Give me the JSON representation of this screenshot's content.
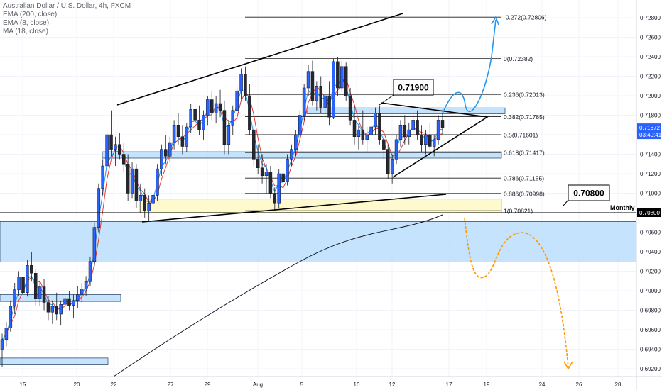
{
  "legend": {
    "title": "Australian Dollar / U.S. Dollar, 4h, FXCM",
    "ema200": "EMA (200, close)",
    "ema8": "EMA (8, close)",
    "ma18": "MA (18, close)"
  },
  "colors": {
    "up": "#2962ff",
    "down": "#26282e",
    "zone_blue": "#bbdefb",
    "zone_yellow": "#fff9c4",
    "ema200": "#131722",
    "ema8": "#2196f3",
    "ma18": "#e53935",
    "arrow_blue": "#2196f3",
    "arrow_orange": "#ff9800"
  },
  "chart_data": {
    "type": "candlestick",
    "x_tick_labels": [
      "15",
      "20",
      "22",
      "27",
      "29",
      "Aug",
      "5",
      "10",
      "12",
      "17",
      "19",
      "24",
      "26",
      "28"
    ],
    "y_tick_labels": [
      "0.72800",
      "0.72600",
      "0.72400",
      "0.72200",
      "0.72000",
      "0.71800",
      "0.71600",
      "0.71400",
      "0.71200",
      "0.71000",
      "0.70800",
      "0.70600",
      "0.70400",
      "0.70200",
      "0.70000",
      "0.69800",
      "0.69600",
      "0.69400",
      "0.69200"
    ],
    "ylim": [
      0.6907,
      0.7295
    ],
    "last_price": "0.71672",
    "countdown": "03:40:41",
    "monthly_price": "0.70800",
    "monthly_label": "Monthly",
    "callout_upper": "0.71900",
    "callout_lower": "0.70800",
    "fib_levels": [
      {
        "label": "-0.272(0.72806)",
        "value": 0.72806
      },
      {
        "label": "0(0.72382)",
        "value": 0.72382
      },
      {
        "label": "0.236(0.72013)",
        "value": 0.72013
      },
      {
        "label": "0.382(0.71785)",
        "value": 0.71785
      },
      {
        "label": "0.5(0.71601)",
        "value": 0.71601
      },
      {
        "label": "0.618(0.71417)",
        "value": 0.71417
      },
      {
        "label": "0.786(0.71155)",
        "value": 0.71155
      },
      {
        "label": "0.886(0.70998)",
        "value": 0.70998
      },
      {
        "label": "1(0.70821)",
        "value": 0.70821
      }
    ],
    "zones": [
      {
        "color": "blue",
        "y_top": 0.7071,
        "y_bottom": 0.70295
      },
      {
        "color": "blue",
        "y_top": 0.71875,
        "y_bottom": 0.71815
      },
      {
        "color": "blue",
        "y_top": 0.71425,
        "y_bottom": 0.7136
      },
      {
        "color": "blue",
        "y_top": 0.6996,
        "y_bottom": 0.6989
      },
      {
        "color": "blue",
        "y_top": 0.6931,
        "y_bottom": 0.6924
      },
      {
        "color": "yellow",
        "y_top": 0.7094,
        "y_bottom": 0.708
      }
    ],
    "candles": [
      [
        0.694,
        0.6956,
        0.6922,
        0.695
      ],
      [
        0.695,
        0.6968,
        0.6943,
        0.6962
      ],
      [
        0.6962,
        0.699,
        0.6958,
        0.6984
      ],
      [
        0.6984,
        0.7008,
        0.6976,
        0.7001
      ],
      [
        0.7001,
        0.702,
        0.6995,
        0.7014
      ],
      [
        0.7014,
        0.7025,
        0.699,
        0.6998
      ],
      [
        0.6998,
        0.7032,
        0.6994,
        0.7026
      ],
      [
        0.7026,
        0.704,
        0.701,
        0.7018
      ],
      [
        0.7018,
        0.7022,
        0.6985,
        0.6992
      ],
      [
        0.6992,
        0.701,
        0.6984,
        0.7004
      ],
      [
        0.7004,
        0.7012,
        0.698,
        0.6988
      ],
      [
        0.6988,
        0.6995,
        0.697,
        0.6978
      ],
      [
        0.6978,
        0.699,
        0.6966,
        0.6984
      ],
      [
        0.6984,
        0.6998,
        0.697,
        0.6976
      ],
      [
        0.6976,
        0.699,
        0.6965,
        0.6986
      ],
      [
        0.6986,
        0.6998,
        0.6975,
        0.6992
      ],
      [
        0.6992,
        0.7,
        0.698,
        0.6985
      ],
      [
        0.6985,
        0.6996,
        0.6972,
        0.699
      ],
      [
        0.699,
        0.7005,
        0.6982,
        0.6996
      ],
      [
        0.6996,
        0.7008,
        0.6988,
        0.7002
      ],
      [
        0.7002,
        0.7015,
        0.6995,
        0.701
      ],
      [
        0.701,
        0.7035,
        0.7005,
        0.703
      ],
      [
        0.703,
        0.707,
        0.7025,
        0.7065
      ],
      [
        0.7065,
        0.711,
        0.706,
        0.7105
      ],
      [
        0.7105,
        0.7135,
        0.7098,
        0.7128
      ],
      [
        0.7128,
        0.7165,
        0.7122,
        0.716
      ],
      [
        0.716,
        0.7185,
        0.7138,
        0.7145
      ],
      [
        0.7145,
        0.7158,
        0.7128,
        0.715
      ],
      [
        0.715,
        0.7162,
        0.7135,
        0.714
      ],
      [
        0.714,
        0.7152,
        0.7122,
        0.713
      ],
      [
        0.713,
        0.714,
        0.7092,
        0.71
      ],
      [
        0.71,
        0.7132,
        0.7095,
        0.7125
      ],
      [
        0.7125,
        0.713,
        0.7085,
        0.7092
      ],
      [
        0.7092,
        0.711,
        0.708,
        0.7098
      ],
      [
        0.7098,
        0.7105,
        0.7075,
        0.7082
      ],
      [
        0.7082,
        0.7098,
        0.7072,
        0.709
      ],
      [
        0.709,
        0.7105,
        0.708,
        0.7098
      ],
      [
        0.7098,
        0.713,
        0.7092,
        0.7125
      ],
      [
        0.7125,
        0.715,
        0.7118,
        0.7145
      ],
      [
        0.7145,
        0.716,
        0.713,
        0.7138
      ],
      [
        0.7138,
        0.7158,
        0.7132,
        0.7152
      ],
      [
        0.7152,
        0.7175,
        0.7145,
        0.717
      ],
      [
        0.717,
        0.7182,
        0.715,
        0.7158
      ],
      [
        0.7158,
        0.717,
        0.714,
        0.7148
      ],
      [
        0.7148,
        0.7172,
        0.7142,
        0.7168
      ],
      [
        0.7168,
        0.7192,
        0.7162,
        0.7186
      ],
      [
        0.7186,
        0.7195,
        0.7168,
        0.7175
      ],
      [
        0.7175,
        0.719,
        0.716,
        0.7165
      ],
      [
        0.7165,
        0.7185,
        0.7155,
        0.718
      ],
      [
        0.718,
        0.72,
        0.717,
        0.7196
      ],
      [
        0.7196,
        0.7205,
        0.7175,
        0.7182
      ],
      [
        0.7182,
        0.72,
        0.7172,
        0.7192
      ],
      [
        0.7192,
        0.7206,
        0.7178,
        0.7185
      ],
      [
        0.7185,
        0.7195,
        0.714,
        0.715
      ],
      [
        0.715,
        0.7175,
        0.714,
        0.717
      ],
      [
        0.717,
        0.719,
        0.716,
        0.7185
      ],
      [
        0.7185,
        0.721,
        0.718,
        0.7205
      ],
      [
        0.7205,
        0.7228,
        0.7196,
        0.7222
      ],
      [
        0.7222,
        0.723,
        0.7195,
        0.72
      ],
      [
        0.72,
        0.7212,
        0.716,
        0.7165
      ],
      [
        0.7165,
        0.717,
        0.7128,
        0.7135
      ],
      [
        0.7135,
        0.715,
        0.712,
        0.7126
      ],
      [
        0.7126,
        0.714,
        0.711,
        0.7118
      ],
      [
        0.7118,
        0.713,
        0.71,
        0.7122
      ],
      [
        0.7122,
        0.7128,
        0.7095,
        0.71
      ],
      [
        0.71,
        0.7106,
        0.7082,
        0.709
      ],
      [
        0.709,
        0.7125,
        0.7085,
        0.712
      ],
      [
        0.712,
        0.713,
        0.7105,
        0.7112
      ],
      [
        0.7112,
        0.714,
        0.7108,
        0.7135
      ],
      [
        0.7135,
        0.715,
        0.7128,
        0.7145
      ],
      [
        0.7145,
        0.7165,
        0.7138,
        0.716
      ],
      [
        0.716,
        0.7185,
        0.7155,
        0.718
      ],
      [
        0.718,
        0.7212,
        0.7175,
        0.7208
      ],
      [
        0.7208,
        0.7232,
        0.72,
        0.7225
      ],
      [
        0.7225,
        0.7236,
        0.719,
        0.7195
      ],
      [
        0.7195,
        0.7215,
        0.7185,
        0.721
      ],
      [
        0.721,
        0.722,
        0.7182,
        0.7188
      ],
      [
        0.7188,
        0.7205,
        0.718,
        0.72
      ],
      [
        0.72,
        0.7215,
        0.717,
        0.7178
      ],
      [
        0.7178,
        0.7238,
        0.7176,
        0.7235
      ],
      [
        0.7235,
        0.724,
        0.72,
        0.7208
      ],
      [
        0.7208,
        0.7236,
        0.7204,
        0.723
      ],
      [
        0.723,
        0.7234,
        0.7195,
        0.72
      ],
      [
        0.72,
        0.7208,
        0.717,
        0.7175
      ],
      [
        0.7175,
        0.719,
        0.715,
        0.7158
      ],
      [
        0.7158,
        0.717,
        0.7145,
        0.7165
      ],
      [
        0.7165,
        0.7185,
        0.715,
        0.7155
      ],
      [
        0.7155,
        0.7168,
        0.7142,
        0.716
      ],
      [
        0.716,
        0.7175,
        0.715,
        0.7168
      ],
      [
        0.7168,
        0.7188,
        0.716,
        0.7182
      ],
      [
        0.7182,
        0.719,
        0.715,
        0.7155
      ],
      [
        0.7155,
        0.7165,
        0.7135,
        0.7145
      ],
      [
        0.7145,
        0.715,
        0.7115,
        0.712
      ],
      [
        0.712,
        0.714,
        0.711,
        0.7135
      ],
      [
        0.7135,
        0.716,
        0.713,
        0.7155
      ],
      [
        0.7155,
        0.7175,
        0.7148,
        0.717
      ],
      [
        0.717,
        0.718,
        0.715,
        0.7158
      ],
      [
        0.7158,
        0.7172,
        0.715,
        0.7165
      ],
      [
        0.7165,
        0.7182,
        0.716,
        0.7175
      ],
      [
        0.7175,
        0.7185,
        0.7155,
        0.716
      ],
      [
        0.716,
        0.717,
        0.7142,
        0.715
      ],
      [
        0.715,
        0.7165,
        0.714,
        0.716
      ],
      [
        0.716,
        0.7172,
        0.7145,
        0.7148
      ],
      [
        0.7148,
        0.716,
        0.7138,
        0.7155
      ],
      [
        0.7155,
        0.718,
        0.715,
        0.7175
      ],
      [
        0.7175,
        0.7182,
        0.7162,
        0.7167
      ]
    ]
  }
}
